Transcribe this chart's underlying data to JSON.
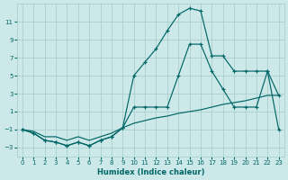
{
  "xlabel": "Humidex (Indice chaleur)",
  "background_color": "#cce8e8",
  "grid_color": "#aacece",
  "line_color": "#006666",
  "x": [
    0,
    1,
    2,
    3,
    4,
    5,
    6,
    7,
    8,
    9,
    10,
    11,
    12,
    13,
    14,
    15,
    16,
    17,
    18,
    19,
    20,
    21,
    22,
    23
  ],
  "line_top": [
    -1.0,
    -1.4,
    -2.2,
    -2.4,
    -2.8,
    -2.4,
    -2.8,
    -2.2,
    -1.8,
    -0.8,
    5.0,
    6.5,
    8.0,
    10.0,
    11.8,
    12.5,
    12.2,
    7.2,
    7.2,
    5.5,
    5.5,
    5.5,
    5.5,
    2.8
  ],
  "line_mid": [
    -1.0,
    -1.4,
    -2.2,
    -2.4,
    -2.8,
    -2.4,
    -2.8,
    -2.2,
    -1.8,
    -0.8,
    1.5,
    1.5,
    1.5,
    1.5,
    5.0,
    8.5,
    8.5,
    5.5,
    3.5,
    1.5,
    1.5,
    1.5,
    5.5,
    -1.0
  ],
  "line_bot": [
    -1.0,
    -1.2,
    -1.8,
    -1.8,
    -2.2,
    -1.8,
    -2.2,
    -1.8,
    -1.4,
    -0.8,
    -0.3,
    0.0,
    0.3,
    0.5,
    0.8,
    1.0,
    1.2,
    1.5,
    1.8,
    2.0,
    2.2,
    2.5,
    2.8,
    2.8
  ],
  "ylim": [
    -4,
    13
  ],
  "xlim": [
    -0.5,
    23.5
  ],
  "yticks": [
    -3,
    -1,
    1,
    3,
    5,
    7,
    9,
    11
  ],
  "xticks": [
    0,
    1,
    2,
    3,
    4,
    5,
    6,
    7,
    8,
    9,
    10,
    11,
    12,
    13,
    14,
    15,
    16,
    17,
    18,
    19,
    20,
    21,
    22,
    23
  ]
}
